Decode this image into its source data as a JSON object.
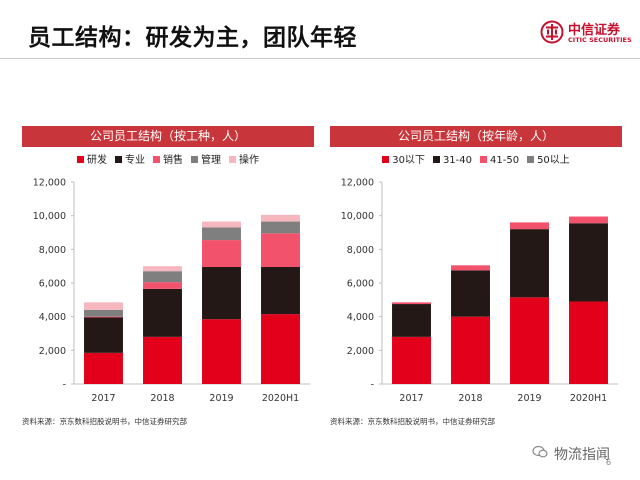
{
  "page": {
    "title": "员工结构：研发为主，团队年轻",
    "page_number": "6",
    "watermark": "物流指闻"
  },
  "logo": {
    "name_cn": "中信证券",
    "name_en": "CITIC SECURITIES"
  },
  "colors": {
    "header": "#c8353a",
    "brand": "#c8102e"
  },
  "chart_data": [
    {
      "type": "bar",
      "stacked": true,
      "title": "公司员工结构（按工种，人）",
      "categories": [
        "2017",
        "2018",
        "2019",
        "2020H1"
      ],
      "ylim": [
        0,
        12000
      ],
      "yticks": [
        0,
        2000,
        4000,
        6000,
        8000,
        10000,
        12000
      ],
      "ytick_labels": [
        "-",
        "2,000",
        "4,000",
        "6,000",
        "8,000",
        "10,000",
        "12,000"
      ],
      "legend_position": "top",
      "grid": false,
      "series": [
        {
          "name": "研发",
          "color": "#e3001b",
          "values": [
            1850,
            2800,
            3850,
            4150
          ]
        },
        {
          "name": "专业",
          "color": "#231815",
          "values": [
            2100,
            2850,
            3100,
            2800
          ]
        },
        {
          "name": "销售",
          "color": "#f2526c",
          "values": [
            50,
            400,
            1600,
            2000
          ]
        },
        {
          "name": "管理",
          "color": "#7f7f7f",
          "values": [
            400,
            650,
            750,
            700
          ]
        },
        {
          "name": "操作",
          "color": "#f6b6be",
          "values": [
            450,
            300,
            350,
            400
          ]
        }
      ],
      "source": "资料来源：京东数科招股说明书，中信证券研究部"
    },
    {
      "type": "bar",
      "stacked": true,
      "title": "公司员工结构（按年龄，人）",
      "categories": [
        "2017",
        "2018",
        "2019",
        "2020H1"
      ],
      "ylim": [
        0,
        12000
      ],
      "yticks": [
        0,
        2000,
        4000,
        6000,
        8000,
        10000,
        12000
      ],
      "ytick_labels": [
        "-",
        "2,000",
        "4,000",
        "6,000",
        "8,000",
        "10,000",
        "12,000"
      ],
      "legend_position": "top",
      "grid": false,
      "series": [
        {
          "name": "30以下",
          "color": "#e3001b",
          "values": [
            2800,
            4000,
            5150,
            4900
          ]
        },
        {
          "name": "31-40",
          "color": "#231815",
          "values": [
            1950,
            2750,
            4050,
            4650
          ]
        },
        {
          "name": "41-50",
          "color": "#f2526c",
          "values": [
            100,
            300,
            400,
            400
          ]
        },
        {
          "name": "50以上",
          "color": "#7f7f7f",
          "values": [
            0,
            0,
            0,
            0
          ]
        }
      ],
      "source": "资料来源：京东数科招股说明书，中信证券研究部"
    }
  ]
}
